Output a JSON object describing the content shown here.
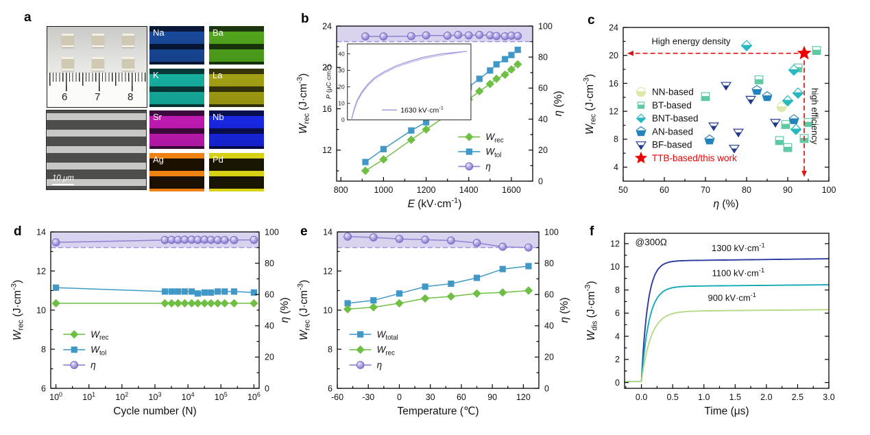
{
  "figure": {
    "panels": {
      "a": "a",
      "b": "b",
      "c": "c",
      "d": "d",
      "e": "e",
      "f": "f"
    }
  },
  "panel_a": {
    "ruler_numbers": [
      "6",
      "7",
      "8"
    ],
    "sem_scale_bar": "10 μm",
    "chip_count": 6,
    "eds_maps": [
      {
        "element": "Na",
        "stripe": "#1a4b9e",
        "bg": "#0c2a5e",
        "mode": "matrix"
      },
      {
        "element": "Ba",
        "stripe": "#55a81e",
        "bg": "#2c6a10",
        "mode": "matrix"
      },
      {
        "element": "K",
        "stripe": "#17b2a2",
        "bg": "#0a6e64",
        "mode": "matrix"
      },
      {
        "element": "La",
        "stripe": "#a8a414",
        "bg": "#67640a",
        "mode": "matrix"
      },
      {
        "element": "Sr",
        "stripe": "#c21bb4",
        "bg": "#7c0e74",
        "mode": "matrix"
      },
      {
        "element": "Nb",
        "stripe": "#1a2ae8",
        "bg": "#0a1188",
        "mode": "matrix"
      },
      {
        "element": "Ag",
        "stripe": "#ef8012",
        "bg": "#1c1003",
        "mode": "electrode"
      },
      {
        "element": "Pd",
        "stripe": "#d8d012",
        "bg": "#181602",
        "mode": "electrode"
      }
    ]
  },
  "chart_data": [
    {
      "id": "b",
      "type": "line",
      "xlabel": "*E* (kV·cm^{-1})",
      "ylabel_left": "*W*_{rec} (J·cm^{-3})",
      "ylabel_right": "*η* (%)",
      "xlim": [
        780,
        1700
      ],
      "xticks": [
        800,
        1000,
        1200,
        1400,
        1600
      ],
      "ylim_left": [
        9,
        24
      ],
      "yticks_left": [
        12,
        16,
        20,
        24
      ],
      "ylim_right": [
        0,
        100
      ],
      "yticks_right": [
        0,
        20,
        40,
        60,
        80,
        100
      ],
      "band": {
        "from": 90,
        "to": 100
      },
      "dash_y": 90,
      "x": [
        915,
        1000,
        1130,
        1200,
        1300,
        1350,
        1400,
        1450,
        1500,
        1530,
        1570,
        1600,
        1630
      ],
      "series": [
        {
          "name": "*W*_{rec}",
          "axis": "left",
          "marker": "diamond",
          "color": "#6fbf44",
          "values": [
            10.0,
            11.1,
            13.0,
            14.0,
            15.4,
            16.1,
            16.9,
            17.7,
            18.4,
            18.9,
            19.3,
            19.8,
            20.3
          ]
        },
        {
          "name": "*W*_{tol}",
          "axis": "left",
          "marker": "square",
          "color": "#3f98c8",
          "values": [
            10.85,
            12.1,
            13.9,
            14.7,
            16.5,
            17.2,
            18.1,
            18.9,
            19.7,
            20.3,
            20.8,
            21.2,
            21.7
          ]
        },
        {
          "name": "*η*",
          "axis": "right",
          "marker": "sphere",
          "color": "#8f82d2",
          "values": [
            93.3,
            93.3,
            93.5,
            94.0,
            93.8,
            94.3,
            94.0,
            94.3,
            94.0,
            93.6,
            93.4,
            93.8,
            93.6
          ]
        }
      ],
      "legend": {
        "x": 0.62,
        "y": 0.715,
        "dy": 0.095,
        "line": true
      },
      "inset": {
        "x0": 0.055,
        "y0": 0.115,
        "w": 0.63,
        "h": 0.49,
        "ylabel": "*P* (μC·cm^{-2})",
        "yticks": [
          0,
          10,
          20,
          30,
          40
        ],
        "ylim": [
          0,
          46
        ],
        "legend": "1630 kV·cm^{-1}",
        "color": "#a79ce0",
        "curve_x": [
          0,
          0.02,
          0.05,
          0.09,
          0.14,
          0.2,
          0.28,
          0.38,
          0.5,
          0.63,
          0.78,
          1.0
        ],
        "curve_y": [
          0,
          6,
          12,
          17,
          21.5,
          25.5,
          29,
          32.5,
          35.5,
          38,
          40,
          41.5
        ]
      }
    },
    {
      "id": "c",
      "type": "scatter",
      "xlabel": "*η* (%)",
      "ylabel_left": "*W*_{rec} (J·cm^{-3})",
      "xlim": [
        50,
        100
      ],
      "xticks": [
        50,
        60,
        70,
        80,
        90,
        100
      ],
      "ylim_left": [
        2,
        24
      ],
      "yticks_left": [
        4,
        8,
        12,
        16,
        20,
        24
      ],
      "series": [
        {
          "name": "NN-based",
          "marker": "circle",
          "half": true,
          "color": "#dfe8ac",
          "points": [
            [
              88.5,
              12.6
            ]
          ]
        },
        {
          "name": "BT-based",
          "marker": "square",
          "half": true,
          "color": "#5ec9a2",
          "points": [
            [
              70,
              14.1
            ],
            [
              83,
              16.5
            ],
            [
              92.5,
              18.2
            ],
            [
              97,
              20.7
            ],
            [
              89.5,
              10.1
            ],
            [
              95,
              10.4
            ],
            [
              88,
              7.8
            ],
            [
              90,
              6.8
            ],
            [
              94,
              8.1
            ]
          ]
        },
        {
          "name": "BNT-based",
          "marker": "diamond",
          "half": true,
          "color": "#28b8c0",
          "points": [
            [
              80,
              21.4
            ],
            [
              91.5,
              17.9
            ],
            [
              92.5,
              14.6
            ],
            [
              90,
              13.5
            ],
            [
              92,
              9.4
            ]
          ]
        },
        {
          "name": "AN-based",
          "marker": "pentagon",
          "half": true,
          "color": "#2383bd",
          "points": [
            [
              82.5,
              15.0
            ],
            [
              85,
              14.1
            ],
            [
              71,
              7.9
            ],
            [
              91.5,
              10.8
            ]
          ]
        },
        {
          "name": "BF-based",
          "marker": "tridown",
          "half": true,
          "color": "#233a8f",
          "points": [
            [
              75,
              15.7
            ],
            [
              81,
              13.7
            ],
            [
              72,
              9.9
            ],
            [
              78,
              9.0
            ],
            [
              77,
              6.7
            ],
            [
              87,
              10.4
            ]
          ]
        },
        {
          "name": "TTB-based/this work",
          "marker": "star",
          "half": false,
          "color": "#ee0000",
          "label_color": "#ee0000",
          "points": [
            [
              94,
              20.3
            ]
          ]
        }
      ],
      "annotations": {
        "color": "#e01010",
        "h_arrow": {
          "y": 20.3,
          "x_from": 92.6,
          "x_to": 51,
          "label": "High energy density",
          "label_x": 66.5,
          "label_y": 21.6
        },
        "v_arrow": {
          "x": 94,
          "y_from": 19.3,
          "y_to": 2.6,
          "label": "high efficiency",
          "label_x": 95.8,
          "label_y": 11.3
        }
      },
      "legend": {
        "x": 0.06,
        "y": 0.42,
        "dy": 0.086,
        "line": false
      }
    },
    {
      "id": "d",
      "type": "line",
      "xscale": "log",
      "xlabel": "Cycle number (N)",
      "ylabel_left": "*W*_{rec} (J·cm^{-3})",
      "ylabel_right": "*η* (%)",
      "xlim": [
        1,
        1000000
      ],
      "xticks": [
        1,
        10,
        100,
        1000,
        10000,
        100000,
        1000000
      ],
      "xtick_labels": [
        "10^{0}",
        "10^{1}",
        "10^{2}",
        "10^{3}",
        "10^{4}",
        "10^{5}",
        "10^{6}"
      ],
      "ylim_left": [
        6,
        14
      ],
      "yticks_left": [
        6,
        8,
        10,
        12,
        14
      ],
      "ylim_right": [
        0,
        100
      ],
      "yticks_right": [
        0,
        20,
        40,
        60,
        80,
        100
      ],
      "band": {
        "from": 90,
        "to": 100
      },
      "dash_y": 90,
      "x": [
        1,
        2000,
        3200,
        5000,
        8000,
        13000,
        20000,
        32000,
        50000,
        80000,
        130000,
        250000,
        1000000
      ],
      "series": [
        {
          "name": "*W*_{rec}",
          "axis": "left",
          "marker": "diamond",
          "color": "#6fbf44",
          "values": [
            10.35,
            10.35,
            10.35,
            10.35,
            10.35,
            10.35,
            10.35,
            10.35,
            10.35,
            10.35,
            10.35,
            10.35,
            10.35
          ]
        },
        {
          "name": "*W*_{tol}",
          "axis": "left",
          "marker": "square",
          "color": "#3f98c8",
          "values": [
            11.15,
            10.95,
            10.95,
            10.95,
            10.95,
            10.95,
            10.85,
            10.9,
            10.9,
            10.95,
            10.95,
            10.95,
            10.9
          ]
        },
        {
          "name": "*η*",
          "axis": "right",
          "marker": "sphere",
          "color": "#8f82d2",
          "values": [
            93.3,
            94.8,
            94.9,
            94.9,
            95.0,
            95.0,
            94.9,
            95.0,
            94.9,
            94.8,
            94.8,
            94.8,
            94.9
          ]
        }
      ],
      "legend": {
        "x": 0.06,
        "y": 0.655,
        "dy": 0.098,
        "line": true
      }
    },
    {
      "id": "e",
      "type": "line",
      "xlabel": "Temperature (℃)",
      "ylabel_left": "*W*_{rec} (J·cm^{-3})",
      "ylabel_right": "*η* (%)",
      "xlim": [
        -60,
        135
      ],
      "xticks": [
        -60,
        -30,
        0,
        30,
        60,
        90,
        120
      ],
      "ylim_left": [
        6,
        14
      ],
      "yticks_left": [
        6,
        8,
        10,
        12,
        14
      ],
      "ylim_right": [
        0,
        100
      ],
      "yticks_right": [
        0,
        20,
        40,
        60,
        80,
        100
      ],
      "band": {
        "from": 90,
        "to": 100
      },
      "dash_y": 90,
      "x": [
        -50,
        -25,
        0,
        25,
        50,
        75,
        100,
        125
      ],
      "series": [
        {
          "name": "*W*_{total}",
          "axis": "left",
          "marker": "square",
          "color": "#3f98c8",
          "values": [
            10.35,
            10.5,
            10.85,
            11.2,
            11.35,
            11.65,
            12.1,
            12.25
          ]
        },
        {
          "name": "*W*_{rec}",
          "axis": "left",
          "marker": "diamond",
          "color": "#6fbf44",
          "values": [
            10.05,
            10.15,
            10.35,
            10.6,
            10.7,
            10.85,
            10.9,
            11.0
          ]
        },
        {
          "name": "*η*",
          "axis": "right",
          "marker": "sphere",
          "color": "#8f82d2",
          "values": [
            97.0,
            96.5,
            95.5,
            95.0,
            94.5,
            93.0,
            90.5,
            90.0
          ]
        }
      ],
      "legend": {
        "x": 0.06,
        "y": 0.655,
        "dy": 0.098,
        "line": true
      }
    },
    {
      "id": "f",
      "type": "curves",
      "xlabel": "Time (μs)",
      "ylabel_left": "*W*_{dis} (J·cm^{-3})",
      "xlim": [
        -0.27,
        3.0
      ],
      "xticks": [
        0,
        0.5,
        1,
        1.5,
        2,
        2.5,
        3
      ],
      "xtick_labels": [
        "0.0",
        "0.5",
        "1.0",
        "1.5",
        "2.0",
        "2.5",
        "3.0"
      ],
      "ylim_left": [
        -0.5,
        12.9
      ],
      "yticks_left": [
        0,
        2,
        4,
        6,
        8,
        10,
        12
      ],
      "annotation": {
        "text": "@300Ω",
        "x": -0.1,
        "y": 11.85
      },
      "baseline": 0.1,
      "series": [
        {
          "name": "1300 kV·cm^{-1}",
          "color": "#2a3a9e",
          "saturation": 10.5,
          "end_value": 10.7,
          "tau": 0.1,
          "label_x": 1.55,
          "label_y": 11.35
        },
        {
          "name": "1100 kV·cm^{-1}",
          "color": "#13a9b6",
          "saturation": 8.3,
          "end_value": 8.45,
          "tau": 0.12,
          "label_x": 1.55,
          "label_y": 9.2
        },
        {
          "name": "900 kV·cm^{-1}",
          "color": "#b6d987",
          "saturation": 6.15,
          "end_value": 6.3,
          "tau": 0.15,
          "label_x": 1.45,
          "label_y": 7.05
        }
      ]
    }
  ]
}
